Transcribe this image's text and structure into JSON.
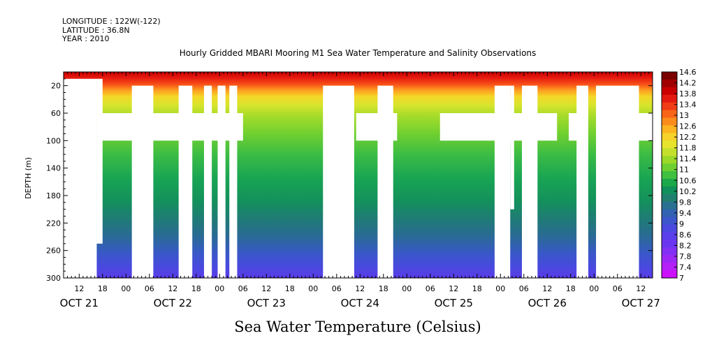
{
  "header": {
    "longitude": "LONGITUDE : 122W(-122)",
    "latitude": "LATITUDE : 36.8N",
    "year": "YEAR : 2010"
  },
  "chart_data": {
    "type": "heatmap",
    "title": "Hourly Gridded MBARI Mooring M1 Sea Water Temperature and Salinity Observations",
    "bottom_title": "Sea Water Temperature (Celsius)",
    "ylabel": "DEPTH (m)",
    "xlabel": "",
    "x_unit": "hours since 2010-10-21 00:00",
    "xlim": [
      8,
      159
    ],
    "ylim": [
      0,
      300
    ],
    "y_inverted": true,
    "y_ticks": [
      20,
      60,
      100,
      140,
      180,
      220,
      260,
      300
    ],
    "x_hour_ticks": [
      {
        "h": 12,
        "label": "12"
      },
      {
        "h": 18,
        "label": "18"
      },
      {
        "h": 24,
        "label": "00"
      },
      {
        "h": 30,
        "label": "06"
      },
      {
        "h": 36,
        "label": "12"
      },
      {
        "h": 42,
        "label": "18"
      },
      {
        "h": 48,
        "label": "00"
      },
      {
        "h": 54,
        "label": "06"
      },
      {
        "h": 60,
        "label": "12"
      },
      {
        "h": 66,
        "label": "18"
      },
      {
        "h": 72,
        "label": "00"
      },
      {
        "h": 78,
        "label": "06"
      },
      {
        "h": 84,
        "label": "12"
      },
      {
        "h": 90,
        "label": "18"
      },
      {
        "h": 96,
        "label": "00"
      },
      {
        "h": 102,
        "label": "06"
      },
      {
        "h": 108,
        "label": "12"
      },
      {
        "h": 114,
        "label": "18"
      },
      {
        "h": 120,
        "label": "00"
      },
      {
        "h": 126,
        "label": "06"
      },
      {
        "h": 132,
        "label": "12"
      },
      {
        "h": 138,
        "label": "18"
      },
      {
        "h": 144,
        "label": "00"
      },
      {
        "h": 150,
        "label": "06"
      },
      {
        "h": 156,
        "label": "12"
      }
    ],
    "date_labels": [
      {
        "h": 12,
        "label": "OCT 21"
      },
      {
        "h": 36,
        "label": "OCT 22"
      },
      {
        "h": 60,
        "label": "OCT 23"
      },
      {
        "h": 84,
        "label": "OCT 24"
      },
      {
        "h": 108,
        "label": "OCT 25"
      },
      {
        "h": 132,
        "label": "OCT 26"
      },
      {
        "h": 156,
        "label": "OCT 27"
      }
    ],
    "colorbar": {
      "levels": [
        14.6,
        14.2,
        13.8,
        13.4,
        13,
        12.6,
        12.2,
        11.8,
        11.4,
        11,
        10.6,
        10.2,
        9.8,
        9.4,
        9,
        8.6,
        8.2,
        7.8,
        7.4,
        7
      ],
      "colors": [
        "#7a0000",
        "#a00000",
        "#c80000",
        "#e41a10",
        "#f03c14",
        "#f86418",
        "#fb8c1c",
        "#fdb420",
        "#f6d22a",
        "#e6e42c",
        "#c4e02c",
        "#9cd828",
        "#6ed030",
        "#40c040",
        "#1aa84a",
        "#10905a",
        "#20806e",
        "#2a7090",
        "#3262b2",
        "#3c56cc",
        "#4a4ae0",
        "#5a40ea",
        "#6c36f0",
        "#8230f4",
        "#9c28f6",
        "#b420f8",
        "#cc10fa"
      ],
      "min_color": "#cc10fa",
      "max_color": "#7a0000"
    },
    "description_of_field": "Temperature decreases with depth: about 14-14.6 near 0-10 m, about 12-13 near 20-40 m, about 11 near 60 m, about 10 near 100 m, about 9 near 180 m, about 8.2 near 260 m, below 8 near 300 m.",
    "missing_data_gaps": [
      {
        "h0": 8,
        "h1": 16.5,
        "d0": 10,
        "d1": 300
      },
      {
        "h0": 16.5,
        "h1": 18,
        "d0": 10,
        "d1": 250
      },
      {
        "h0": 25.5,
        "h1": 31,
        "d0": 20,
        "d1": 300
      },
      {
        "h0": 37.5,
        "h1": 41,
        "d0": 20,
        "d1": 300
      },
      {
        "h0": 44,
        "h1": 46,
        "d0": 20,
        "d1": 300
      },
      {
        "h0": 47.5,
        "h1": 49.5,
        "d0": 20,
        "d1": 300
      },
      {
        "h0": 50.5,
        "h1": 52.5,
        "d0": 20,
        "d1": 300
      },
      {
        "h0": 74.5,
        "h1": 82.5,
        "d0": 20,
        "d1": 300
      },
      {
        "h0": 88.5,
        "h1": 92.5,
        "d0": 20,
        "d1": 300
      },
      {
        "h0": 118.5,
        "h1": 122.5,
        "d0": 20,
        "d1": 300
      },
      {
        "h0": 122.5,
        "h1": 123.5,
        "d0": 20,
        "d1": 200
      },
      {
        "h0": 125.5,
        "h1": 129.5,
        "d0": 20,
        "d1": 300
      },
      {
        "h0": 139.5,
        "h1": 142.5,
        "d0": 20,
        "d1": 300
      },
      {
        "h0": 144.5,
        "h1": 155.5,
        "d0": 20,
        "d1": 300
      },
      {
        "h0": 16.5,
        "h1": 54,
        "d0": 60,
        "d1": 100
      },
      {
        "h0": 83,
        "h1": 93.5,
        "d0": 60,
        "d1": 100
      },
      {
        "h0": 104.5,
        "h1": 134.5,
        "d0": 60,
        "d1": 100
      },
      {
        "h0": 137.5,
        "h1": 141.5,
        "d0": 60,
        "d1": 100
      },
      {
        "h0": 154.5,
        "h1": 159,
        "d0": 60,
        "d1": 100
      }
    ]
  }
}
